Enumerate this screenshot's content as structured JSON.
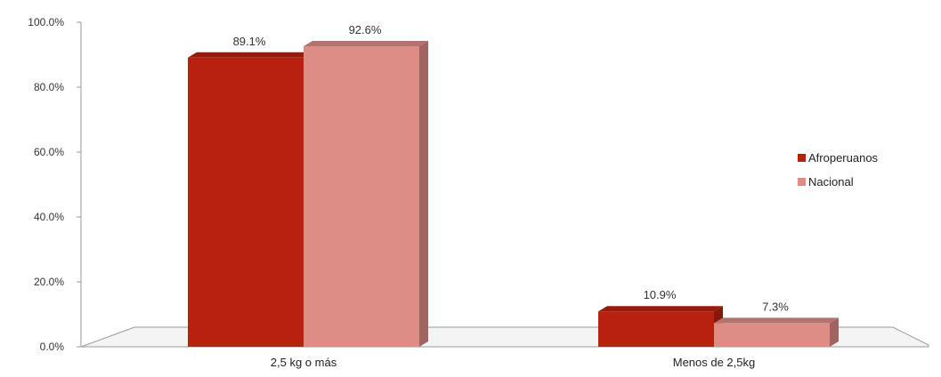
{
  "chart_data": {
    "type": "bar",
    "categories": [
      "2,5 kg o más",
      "Menos de 2,5kg"
    ],
    "series": [
      {
        "name": "Afroperuanos",
        "color": "#b8210f",
        "values": [
          89.1,
          10.9
        ],
        "labels": [
          "89.1%",
          "10.9%"
        ]
      },
      {
        "name": "Nacional",
        "color": "#de8c86",
        "values": [
          92.6,
          7.3
        ],
        "labels": [
          "92.6%",
          "7.3%"
        ]
      }
    ],
    "ylim": [
      0,
      100
    ],
    "yticks": [
      "0.0%",
      "20.0%",
      "40.0%",
      "60.0%",
      "80.0%",
      "100.0%"
    ],
    "grid": false,
    "legend": "right",
    "style": "3d-column"
  }
}
